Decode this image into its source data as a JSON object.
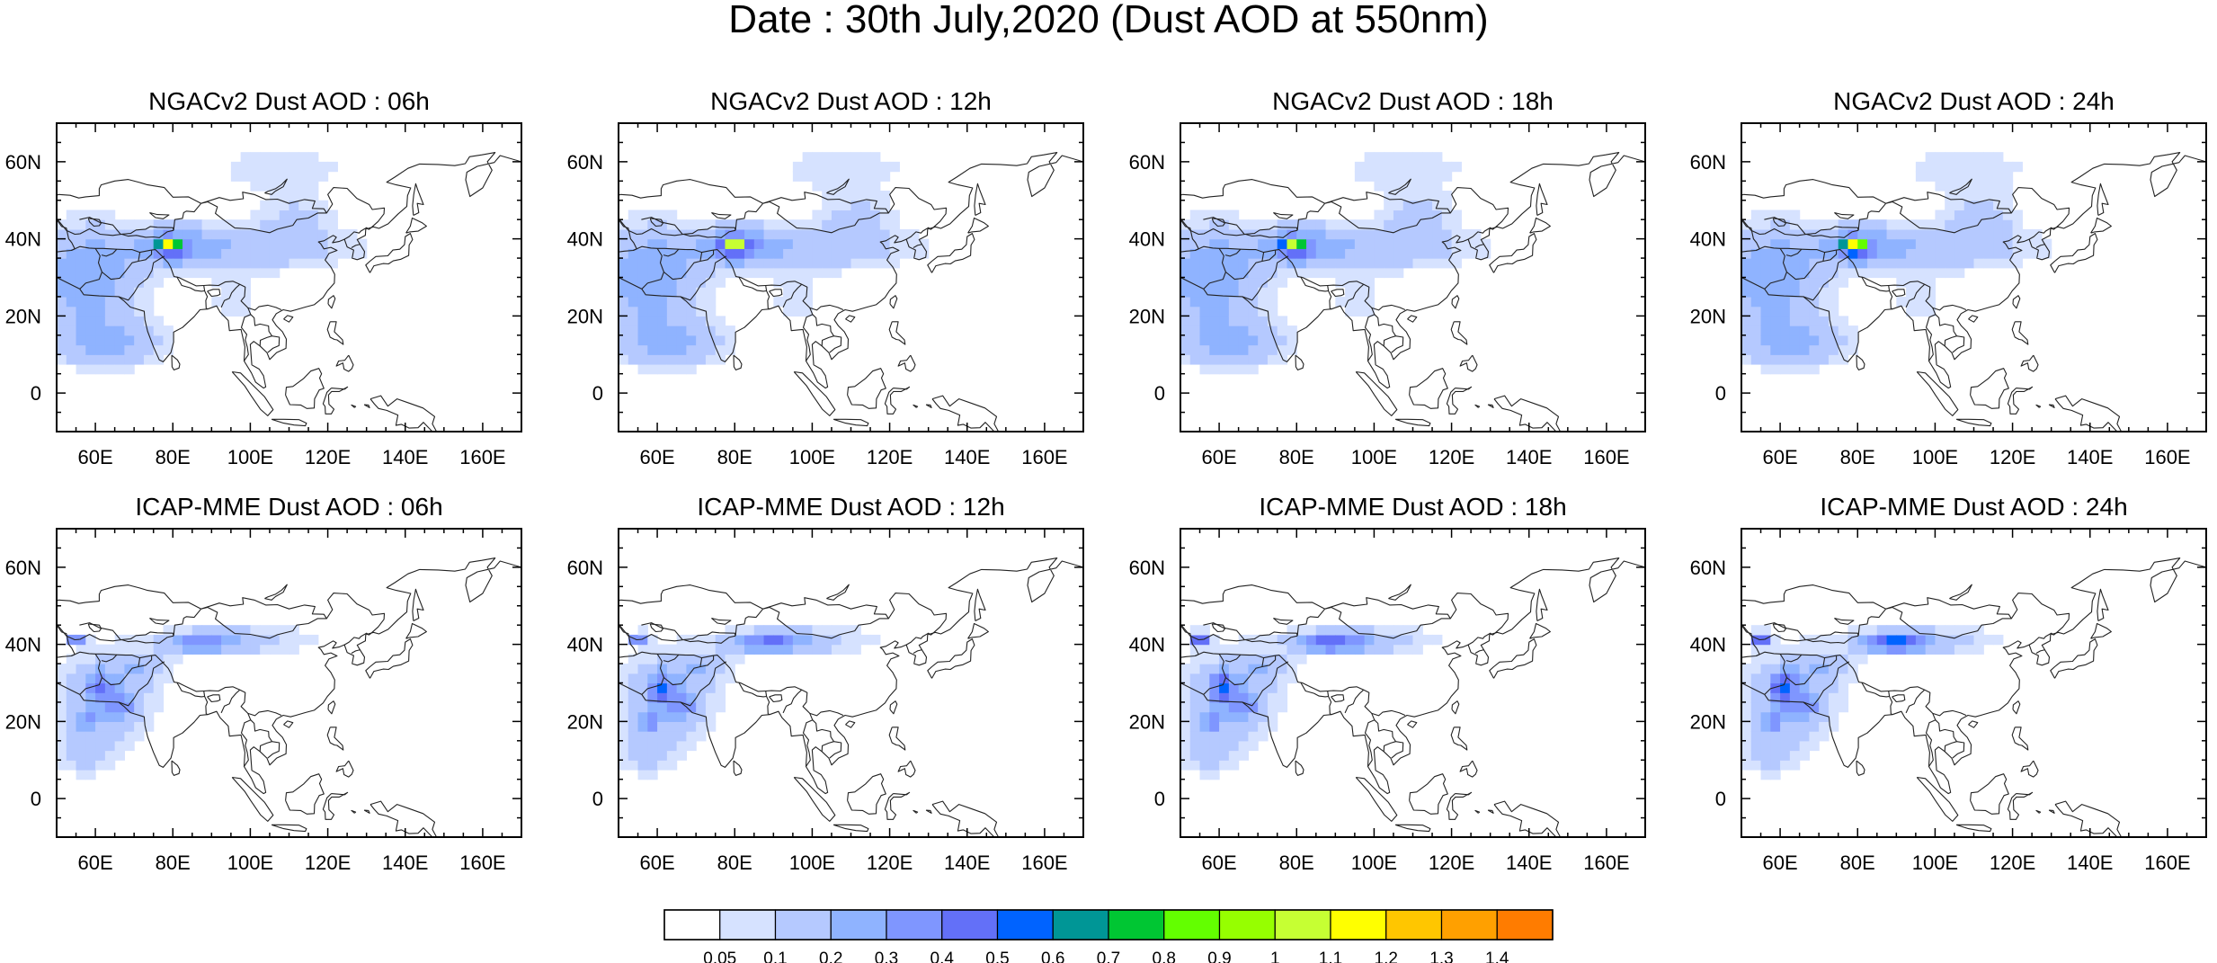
{
  "title": "Date : 30th July,2020 (Dust AOD at 550nm)",
  "panels": [
    {
      "title": "NGACv2 Dust AOD : 06h",
      "model": "ngac",
      "hour": 6
    },
    {
      "title": "NGACv2 Dust AOD : 12h",
      "model": "ngac",
      "hour": 12
    },
    {
      "title": "NGACv2 Dust AOD : 18h",
      "model": "ngac",
      "hour": 18
    },
    {
      "title": "NGACv2 Dust AOD : 24h",
      "model": "ngac",
      "hour": 24
    },
    {
      "title": "ICAP-MME Dust AOD : 06h",
      "model": "icap",
      "hour": 6
    },
    {
      "title": "ICAP-MME Dust AOD : 12h",
      "model": "icap",
      "hour": 12
    },
    {
      "title": "ICAP-MME Dust AOD : 18h",
      "model": "icap",
      "hour": 18
    },
    {
      "title": "ICAP-MME Dust AOD : 24h",
      "model": "icap",
      "hour": 24
    }
  ],
  "map": {
    "lon_range": [
      50,
      170
    ],
    "lat_range": [
      -10,
      70
    ],
    "lon_ticks": [
      "60E",
      "80E",
      "100E",
      "120E",
      "140E",
      "160E"
    ],
    "lat_ticks": [
      "0",
      "20N",
      "40N",
      "60N"
    ]
  },
  "colorbar": {
    "labels": [
      "0.05",
      "0.1",
      "0.2",
      "0.3",
      "0.4",
      "0.5",
      "0.6",
      "0.7",
      "0.8",
      "0.9",
      "1",
      "1.1",
      "1.2",
      "1.3",
      "1.4"
    ],
    "colors": [
      "#ffffff",
      "#d6e2ff",
      "#b5c9ff",
      "#8fb3ff",
      "#7f96ff",
      "#6370f8",
      "#0063ff",
      "#009696",
      "#00c633",
      "#63ff00",
      "#96ff00",
      "#c6ff33",
      "#ffff00",
      "#ffc600",
      "#ffa000",
      "#ff7c00",
      "#ff1900"
    ]
  }
}
